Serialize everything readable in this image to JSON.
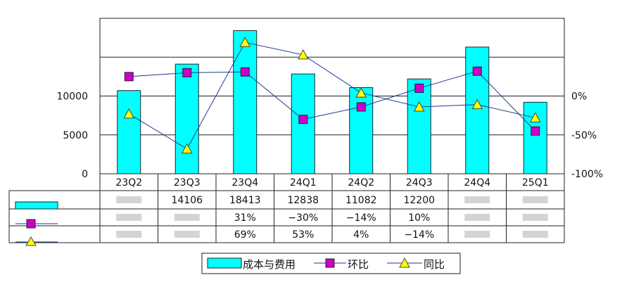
{
  "chart_data": {
    "type": "bar",
    "categories": [
      "23Q2",
      "23Q3",
      "23Q4",
      "24Q1",
      "24Q2",
      "24Q3",
      "24Q4",
      "25Q1"
    ],
    "ylim": [
      0,
      20000
    ],
    "y_ticks": [
      "0",
      "5000",
      "10000"
    ],
    "y2lim": [
      -100,
      100
    ],
    "y2_ticks": [
      "-100%",
      "-50%",
      "0%"
    ],
    "grid": true,
    "series": [
      {
        "name": "成本与费用",
        "type": "bar",
        "axis": "left",
        "color": "#00ffff",
        "values": [
          10700,
          14106,
          18413,
          12838,
          11082,
          12200,
          16300,
          9200
        ]
      },
      {
        "name": "环比",
        "type": "line",
        "axis": "right",
        "color": "#cc00cc",
        "marker": "square",
        "values": [
          25,
          30,
          31,
          -30,
          -14,
          10,
          32,
          -45
        ]
      },
      {
        "name": "同比",
        "type": "line",
        "axis": "right",
        "color": "#ffff00",
        "marker": "triangle",
        "values": [
          -23,
          -68,
          69,
          53,
          4,
          -14,
          -11,
          -28
        ]
      }
    ],
    "table": {
      "rows": [
        {
          "series": "成本与费用",
          "cells": [
            "",
            "14106",
            "18413",
            "12838",
            "11082",
            "12200",
            "",
            ""
          ]
        },
        {
          "series": "环比",
          "cells": [
            "",
            "",
            "31%",
            "−30%",
            "−14%",
            "10%",
            "",
            ""
          ]
        },
        {
          "series": "同比",
          "cells": [
            "",
            "",
            "69%",
            "53%",
            "4%",
            "−14%",
            "",
            ""
          ]
        }
      ]
    },
    "legend": [
      "成本与费用",
      "环比",
      "同比"
    ],
    "legend_position": "bottom"
  }
}
